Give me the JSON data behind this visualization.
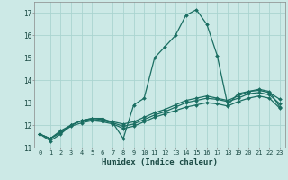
{
  "xlabel": "Humidex (Indice chaleur)",
  "background_color": "#cce9e6",
  "grid_color": "#aad4d0",
  "line_color": "#1a6e62",
  "xlim": [
    -0.5,
    23.5
  ],
  "ylim": [
    11,
    17.5
  ],
  "yticks": [
    11,
    12,
    13,
    14,
    15,
    16,
    17
  ],
  "xticks": [
    0,
    1,
    2,
    3,
    4,
    5,
    6,
    7,
    8,
    9,
    10,
    11,
    12,
    13,
    14,
    15,
    16,
    17,
    18,
    19,
    20,
    21,
    22,
    23
  ],
  "series": [
    {
      "x": [
        0,
        1,
        2,
        3,
        4,
        5,
        6,
        7,
        8,
        9,
        10,
        11,
        12,
        13,
        14,
        15,
        16,
        17,
        18,
        19,
        20,
        21,
        22,
        23
      ],
      "y": [
        11.6,
        11.3,
        11.6,
        12.0,
        12.2,
        12.3,
        12.3,
        12.1,
        11.4,
        12.9,
        13.2,
        15.0,
        15.5,
        16.0,
        16.9,
        17.15,
        16.5,
        15.1,
        12.9,
        13.4,
        13.5,
        13.6,
        13.5,
        12.8
      ]
    },
    {
      "x": [
        0,
        1,
        2,
        3,
        4,
        5,
        6,
        7,
        8,
        9,
        10,
        11,
        12,
        13,
        14,
        15,
        16,
        17,
        18,
        19,
        20,
        21,
        22,
        23
      ],
      "y": [
        11.6,
        11.4,
        11.75,
        12.0,
        12.2,
        12.3,
        12.25,
        12.15,
        12.05,
        12.15,
        12.35,
        12.55,
        12.7,
        12.9,
        13.1,
        13.2,
        13.3,
        13.2,
        13.1,
        13.3,
        13.5,
        13.55,
        13.45,
        13.15
      ]
    },
    {
      "x": [
        0,
        1,
        2,
        3,
        4,
        5,
        6,
        7,
        8,
        9,
        10,
        11,
        12,
        13,
        14,
        15,
        16,
        17,
        18,
        19,
        20,
        21,
        22,
        23
      ],
      "y": [
        11.6,
        11.4,
        11.7,
        12.0,
        12.2,
        12.25,
        12.2,
        12.1,
        11.95,
        12.05,
        12.25,
        12.45,
        12.6,
        12.8,
        13.0,
        13.1,
        13.2,
        13.15,
        13.05,
        13.2,
        13.4,
        13.45,
        13.35,
        12.95
      ]
    },
    {
      "x": [
        0,
        1,
        2,
        3,
        4,
        5,
        6,
        7,
        8,
        9,
        10,
        11,
        12,
        13,
        14,
        15,
        16,
        17,
        18,
        19,
        20,
        21,
        22,
        23
      ],
      "y": [
        11.6,
        11.4,
        11.65,
        11.95,
        12.1,
        12.2,
        12.15,
        12.05,
        11.85,
        11.95,
        12.15,
        12.35,
        12.5,
        12.65,
        12.8,
        12.9,
        13.0,
        12.95,
        12.85,
        13.05,
        13.2,
        13.3,
        13.2,
        12.75
      ]
    }
  ]
}
